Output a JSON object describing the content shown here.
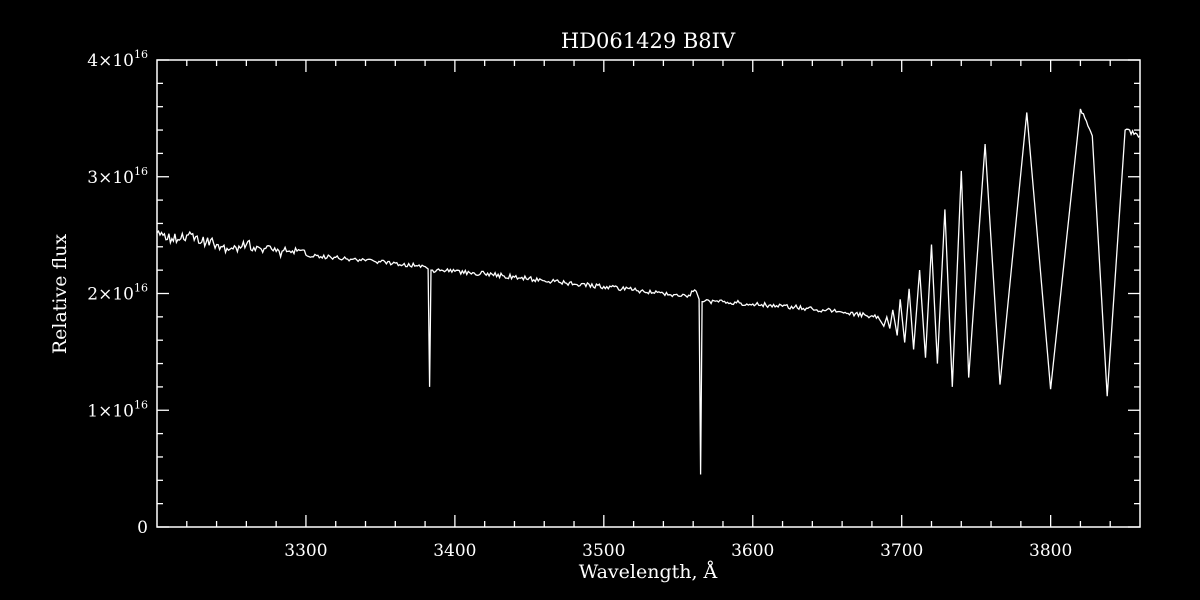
{
  "chart_data": {
    "type": "line",
    "title": "HD061429   B8IV",
    "xlabel": "Wavelength, Å",
    "ylabel": "Relative flux",
    "xlim": [
      3200,
      3860
    ],
    "ylim": [
      0,
      4e+16
    ],
    "grid": false,
    "x_ticks": [
      3300,
      3400,
      3500,
      3600,
      3700,
      3800
    ],
    "x_tick_labels": [
      "3300",
      "3400",
      "3500",
      "3600",
      "3700",
      "3800"
    ],
    "y_ticks": [
      0,
      1e+16,
      2e+16,
      3e+16,
      4e+16
    ],
    "y_tick_labels": [
      {
        "mantissa": "0",
        "exponent": ""
      },
      {
        "mantissa": "1×10",
        "exponent": "16"
      },
      {
        "mantissa": "2×10",
        "exponent": "16"
      },
      {
        "mantissa": "3×10",
        "exponent": "16"
      },
      {
        "mantissa": "4×10",
        "exponent": "16"
      }
    ],
    "series": [
      {
        "color": "#ffffff",
        "points": [
          [
            3200,
            2.52e+16
          ],
          [
            3210,
            2.47e+16
          ],
          [
            3220,
            2.5e+16
          ],
          [
            3230,
            2.44e+16
          ],
          [
            3240,
            2.42e+16
          ],
          [
            3250,
            2.39e+16
          ],
          [
            3260,
            2.42e+16
          ],
          [
            3270,
            2.38e+16
          ],
          [
            3280,
            2.36e+16
          ],
          [
            3290,
            2.35e+16
          ],
          [
            3300,
            2.33e+16
          ],
          [
            3320,
            2.31e+16
          ],
          [
            3340,
            2.28e+16
          ],
          [
            3360,
            2.26e+16
          ],
          [
            3380,
            2.23e+16
          ],
          [
            3382,
            2.21e+16
          ],
          [
            3383,
            1.2e+16
          ],
          [
            3384,
            2.2e+16
          ],
          [
            3400,
            2.19e+16
          ],
          [
            3420,
            2.17e+16
          ],
          [
            3440,
            2.14e+16
          ],
          [
            3460,
            2.11e+16
          ],
          [
            3480,
            2.08e+16
          ],
          [
            3500,
            2.06e+16
          ],
          [
            3520,
            2.03e+16
          ],
          [
            3540,
            2e+16
          ],
          [
            3555,
            1.98e+16
          ],
          [
            3562,
            2.02e+16
          ],
          [
            3564,
            1.95e+16
          ],
          [
            3565,
            4500000000000000.0
          ],
          [
            3566,
            1.93e+16
          ],
          [
            3580,
            1.93e+16
          ],
          [
            3600,
            1.91e+16
          ],
          [
            3620,
            1.89e+16
          ],
          [
            3640,
            1.87e+16
          ],
          [
            3660,
            1.84e+16
          ],
          [
            3680,
            1.81e+16
          ],
          [
            3685,
            1.78e+16
          ],
          [
            3688,
            1.72e+16
          ],
          [
            3690,
            1.8e+16
          ],
          [
            3692,
            1.7e+16
          ],
          [
            3694,
            1.86e+16
          ],
          [
            3697,
            1.64e+16
          ],
          [
            3699,
            1.95e+16
          ],
          [
            3702,
            1.58e+16
          ],
          [
            3705,
            2.04e+16
          ],
          [
            3708,
            1.52e+16
          ],
          [
            3712,
            2.2e+16
          ],
          [
            3716,
            1.45e+16
          ],
          [
            3720,
            2.42e+16
          ],
          [
            3724,
            1.4e+16
          ],
          [
            3729,
            2.72e+16
          ],
          [
            3734,
            1.2e+16
          ],
          [
            3740,
            3.05e+16
          ],
          [
            3745,
            1.28e+16
          ],
          [
            3756,
            3.28e+16
          ],
          [
            3766,
            1.22e+16
          ],
          [
            3784,
            3.55e+16
          ],
          [
            3800,
            1.18e+16
          ],
          [
            3820,
            3.58e+16
          ],
          [
            3828,
            3.35e+16
          ],
          [
            3838,
            1.12e+16
          ],
          [
            3850,
            3.4e+16
          ],
          [
            3860,
            3.35e+16
          ]
        ]
      }
    ]
  }
}
